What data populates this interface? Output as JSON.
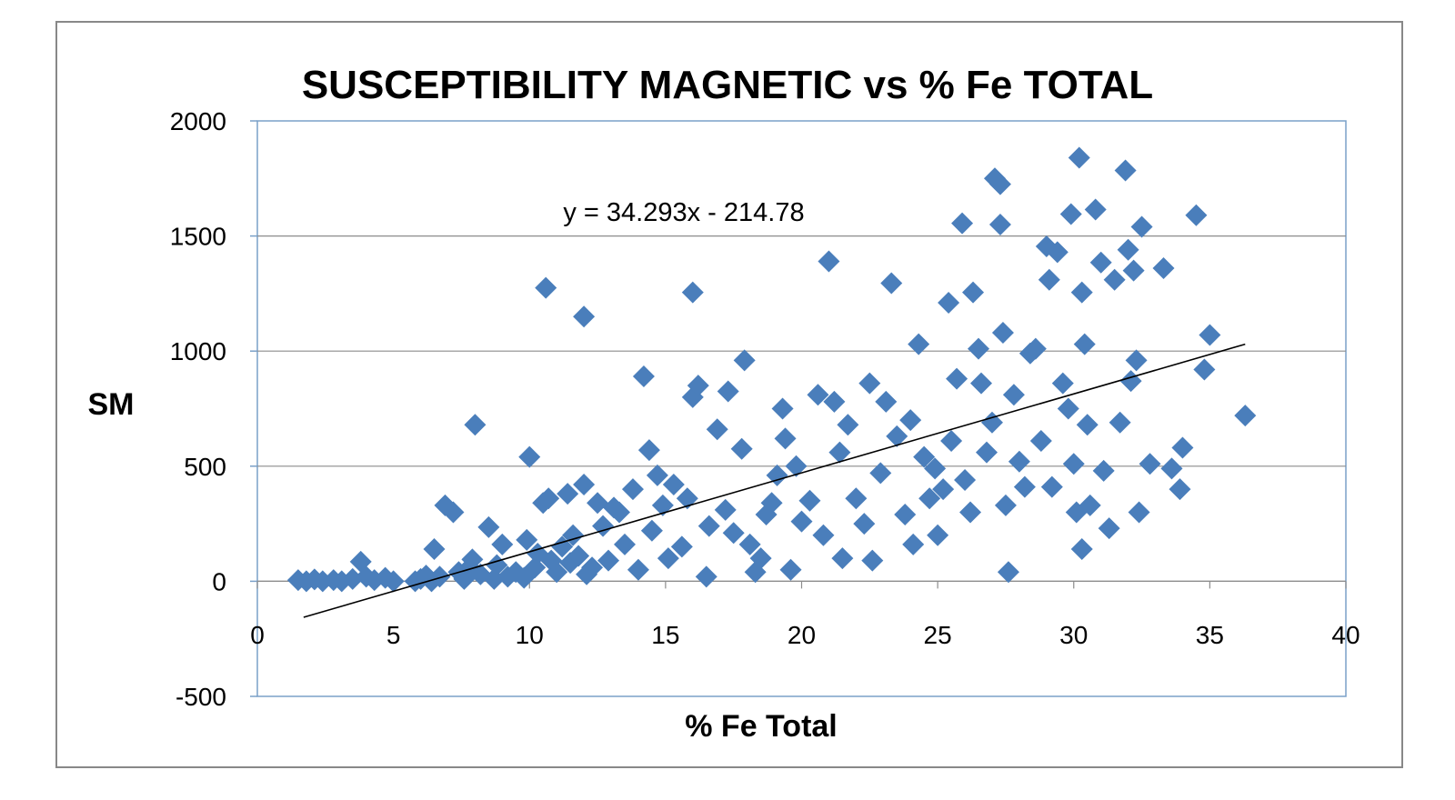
{
  "chart_data": {
    "type": "scatter",
    "title": "SUSCEPTIBILITY MAGNETIC vs % Fe TOTAL",
    "xlabel": "% Fe Total",
    "ylabel": "SM",
    "xlim": [
      0,
      40
    ],
    "ylim": [
      -500,
      2000
    ],
    "x_ticks": [
      "0",
      "5",
      "10",
      "15",
      "20",
      "25",
      "30",
      "35",
      "40"
    ],
    "y_ticks": [
      "-500",
      "0",
      "500",
      "1000",
      "1500",
      "2000"
    ],
    "grid": "horizontal",
    "legend": "none",
    "marker_color": "#4a7ebb",
    "trendline": {
      "label": "y = 34.293x - 214.78",
      "slope": 34.293,
      "intercept": -214.78,
      "x_range": [
        1.7,
        36.3
      ]
    },
    "series": [
      {
        "points": [
          [
            1.5,
            5
          ],
          [
            1.8,
            0
          ],
          [
            2.1,
            8
          ],
          [
            2.4,
            0
          ],
          [
            2.8,
            5
          ],
          [
            3.1,
            0
          ],
          [
            3.5,
            10
          ],
          [
            3.8,
            85
          ],
          [
            4.0,
            20
          ],
          [
            4.3,
            5
          ],
          [
            4.7,
            15
          ],
          [
            5.0,
            0
          ],
          [
            5.8,
            0
          ],
          [
            6.0,
            10
          ],
          [
            6.2,
            25
          ],
          [
            6.4,
            0
          ],
          [
            6.5,
            140
          ],
          [
            6.7,
            20
          ],
          [
            6.9,
            330
          ],
          [
            7.2,
            300
          ],
          [
            7.4,
            40
          ],
          [
            7.6,
            10
          ],
          [
            7.8,
            60
          ],
          [
            7.9,
            95
          ],
          [
            8.0,
            680
          ],
          [
            8.2,
            30
          ],
          [
            8.5,
            235
          ],
          [
            8.7,
            10
          ],
          [
            8.8,
            70
          ],
          [
            9.0,
            160
          ],
          [
            9.2,
            20
          ],
          [
            9.5,
            40
          ],
          [
            9.8,
            15
          ],
          [
            9.9,
            180
          ],
          [
            10.0,
            540
          ],
          [
            10.2,
            60
          ],
          [
            10.3,
            120
          ],
          [
            10.5,
            340
          ],
          [
            10.6,
            1275
          ],
          [
            10.7,
            360
          ],
          [
            10.8,
            90
          ],
          [
            11.0,
            40
          ],
          [
            11.2,
            150
          ],
          [
            11.4,
            380
          ],
          [
            11.5,
            80
          ],
          [
            11.6,
            200
          ],
          [
            11.8,
            110
          ],
          [
            12.0,
            420
          ],
          [
            12.0,
            1150
          ],
          [
            12.1,
            30
          ],
          [
            12.3,
            60
          ],
          [
            12.5,
            340
          ],
          [
            12.7,
            240
          ],
          [
            12.9,
            90
          ],
          [
            13.1,
            320
          ],
          [
            13.3,
            300
          ],
          [
            13.5,
            160
          ],
          [
            13.8,
            400
          ],
          [
            14.0,
            50
          ],
          [
            14.2,
            890
          ],
          [
            14.4,
            570
          ],
          [
            14.5,
            220
          ],
          [
            14.7,
            460
          ],
          [
            14.9,
            330
          ],
          [
            15.1,
            100
          ],
          [
            15.3,
            420
          ],
          [
            15.6,
            150
          ],
          [
            15.8,
            360
          ],
          [
            16.0,
            1255
          ],
          [
            16.0,
            800
          ],
          [
            16.2,
            850
          ],
          [
            16.5,
            20
          ],
          [
            16.6,
            240
          ],
          [
            16.9,
            660
          ],
          [
            17.2,
            310
          ],
          [
            17.3,
            825
          ],
          [
            17.5,
            210
          ],
          [
            17.8,
            575
          ],
          [
            17.9,
            960
          ],
          [
            18.1,
            160
          ],
          [
            18.3,
            40
          ],
          [
            18.5,
            100
          ],
          [
            18.7,
            290
          ],
          [
            18.9,
            340
          ],
          [
            19.1,
            460
          ],
          [
            19.3,
            750
          ],
          [
            19.4,
            620
          ],
          [
            19.6,
            50
          ],
          [
            19.8,
            500
          ],
          [
            20.0,
            260
          ],
          [
            20.3,
            350
          ],
          [
            20.6,
            810
          ],
          [
            20.8,
            200
          ],
          [
            21.0,
            1390
          ],
          [
            21.2,
            780
          ],
          [
            21.4,
            560
          ],
          [
            21.5,
            100
          ],
          [
            21.7,
            680
          ],
          [
            22.0,
            360
          ],
          [
            22.3,
            250
          ],
          [
            22.5,
            860
          ],
          [
            22.6,
            90
          ],
          [
            22.9,
            470
          ],
          [
            23.1,
            780
          ],
          [
            23.3,
            1295
          ],
          [
            23.5,
            630
          ],
          [
            23.8,
            290
          ],
          [
            24.0,
            700
          ],
          [
            24.1,
            160
          ],
          [
            24.3,
            1030
          ],
          [
            24.5,
            540
          ],
          [
            24.7,
            360
          ],
          [
            24.9,
            490
          ],
          [
            25.0,
            200
          ],
          [
            25.2,
            400
          ],
          [
            25.4,
            1210
          ],
          [
            25.5,
            610
          ],
          [
            25.7,
            880
          ],
          [
            25.9,
            1555
          ],
          [
            26.0,
            440
          ],
          [
            26.2,
            300
          ],
          [
            26.3,
            1255
          ],
          [
            26.5,
            1010
          ],
          [
            26.6,
            860
          ],
          [
            26.8,
            560
          ],
          [
            27.0,
            690
          ],
          [
            27.1,
            1750
          ],
          [
            27.3,
            1725
          ],
          [
            27.3,
            1550
          ],
          [
            27.4,
            1080
          ],
          [
            27.5,
            330
          ],
          [
            27.6,
            40
          ],
          [
            27.8,
            810
          ],
          [
            28.0,
            520
          ],
          [
            28.2,
            410
          ],
          [
            28.4,
            990
          ],
          [
            28.6,
            1010
          ],
          [
            28.8,
            610
          ],
          [
            29.0,
            1455
          ],
          [
            29.1,
            1310
          ],
          [
            29.2,
            410
          ],
          [
            29.4,
            1430
          ],
          [
            29.6,
            860
          ],
          [
            29.8,
            750
          ],
          [
            29.9,
            1595
          ],
          [
            30.0,
            510
          ],
          [
            30.1,
            300
          ],
          [
            30.2,
            1840
          ],
          [
            30.3,
            1255
          ],
          [
            30.3,
            140
          ],
          [
            30.4,
            1030
          ],
          [
            30.5,
            680
          ],
          [
            30.6,
            330
          ],
          [
            30.8,
            1615
          ],
          [
            31.0,
            1385
          ],
          [
            31.1,
            480
          ],
          [
            31.3,
            230
          ],
          [
            31.5,
            1310
          ],
          [
            31.7,
            690
          ],
          [
            31.9,
            1785
          ],
          [
            32.0,
            1440
          ],
          [
            32.1,
            870
          ],
          [
            32.2,
            1350
          ],
          [
            32.3,
            960
          ],
          [
            32.4,
            300
          ],
          [
            32.5,
            1540
          ],
          [
            32.8,
            510
          ],
          [
            33.3,
            1360
          ],
          [
            33.6,
            490
          ],
          [
            33.9,
            400
          ],
          [
            34.0,
            580
          ],
          [
            34.5,
            1590
          ],
          [
            34.8,
            920
          ],
          [
            35.0,
            1070
          ],
          [
            36.3,
            720
          ]
        ]
      }
    ]
  }
}
